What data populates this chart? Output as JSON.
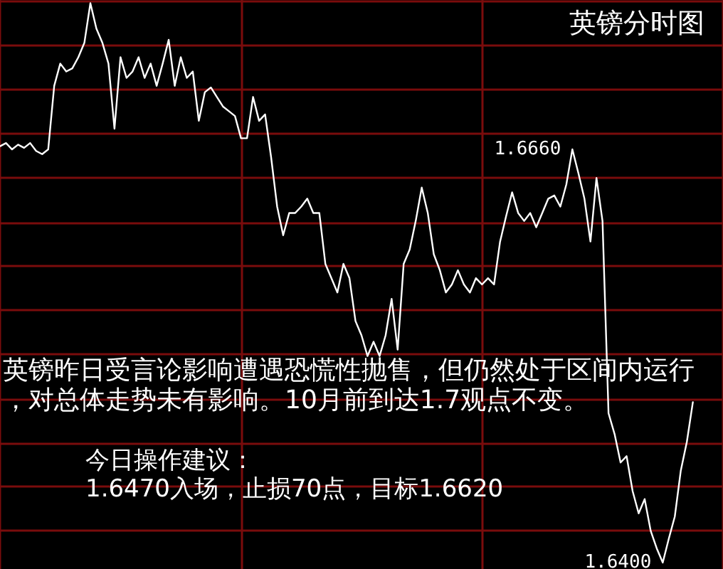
{
  "chart_data": {
    "type": "line",
    "title": "英镑分时图",
    "annotations": [
      "英镑昨日受言论影响遭遇恐慌性抛售，但仍然处于区间内运行，对总体走势未有影响。10月前到达1.7观点不变。",
      "今日操作建议：",
      "1.6470入场，止损70点，目标1.6620"
    ],
    "categories": [
      null,
      null,
      null,
      null,
      null,
      null,
      null,
      null,
      null,
      null,
      null,
      null,
      null,
      null,
      null,
      null,
      null,
      null,
      null,
      null,
      null,
      null,
      null,
      null,
      null,
      null,
      null,
      null,
      null,
      null,
      null,
      null,
      null,
      null,
      null,
      null,
      null,
      null,
      null,
      null,
      null,
      null,
      null,
      null,
      null,
      null,
      null,
      null,
      null,
      null,
      null,
      null,
      null,
      null,
      null,
      null,
      null,
      null,
      null,
      null,
      null,
      null,
      null,
      null,
      null,
      null,
      null,
      null,
      null,
      null,
      null,
      null,
      null,
      null,
      null,
      null,
      null,
      null,
      null,
      null,
      null,
      null,
      null,
      null,
      null,
      null,
      null,
      null,
      null,
      null,
      null,
      null,
      null,
      null,
      null,
      null,
      null,
      null,
      null,
      null,
      null,
      null,
      null,
      null,
      null,
      null,
      null,
      null,
      null,
      null,
      null,
      null,
      null,
      null,
      null,
      null,
      null,
      null,
      null,
      null,
      null
    ],
    "color": "#ffffff",
    "values": [
      1.6662,
      1.6664,
      1.666,
      1.6663,
      1.6661,
      1.6664,
      1.6659,
      1.6657,
      1.666,
      1.67,
      1.6714,
      1.6709,
      1.6711,
      1.6718,
      1.6727,
      1.6752,
      1.6736,
      1.6727,
      1.6714,
      1.6673,
      1.6718,
      1.6705,
      1.6709,
      1.6718,
      1.6705,
      1.6714,
      1.67,
      1.6714,
      1.6729,
      1.67,
      1.6718,
      1.6705,
      1.6709,
      1.6678,
      1.6696,
      1.6699,
      1.6693,
      1.6687,
      1.6684,
      1.6681,
      1.6667,
      1.6667,
      1.6693,
      1.6678,
      1.6682,
      1.6655,
      1.6624,
      1.6606,
      1.662,
      1.662,
      1.6624,
      1.6629,
      1.662,
      1.662,
      1.6588,
      1.6579,
      1.657,
      1.6588,
      1.6579,
      1.6552,
      1.6543,
      1.653,
      1.6539,
      1.653,
      1.6543,
      1.6566,
      1.6534,
      1.6588,
      1.6597,
      1.6615,
      1.6636,
      1.662,
      1.6594,
      1.6584,
      1.657,
      1.6575,
      1.6584,
      1.6575,
      1.657,
      1.6579,
      1.6575,
      1.6579,
      1.6575,
      1.6602,
      1.6618,
      1.6633,
      1.662,
      1.6615,
      1.662,
      1.6611,
      1.662,
      1.6629,
      1.6631,
      1.6624,
      1.6638,
      1.666,
      1.6645,
      1.6629,
      1.6602,
      1.6642,
      1.6615,
      1.6494,
      1.6481,
      1.6463,
      1.6467,
      1.6445,
      1.6431,
      1.644,
      1.642,
      1.6409,
      1.64,
      1.6415,
      1.6429,
      1.6458,
      1.6476,
      1.6501,
      null,
      null,
      null,
      null,
      null
    ],
    "value_labels": [
      null,
      null,
      null,
      null,
      null,
      null,
      null,
      null,
      null,
      null,
      null,
      null,
      null,
      null,
      null,
      null,
      null,
      null,
      null,
      null,
      null,
      null,
      null,
      null,
      null,
      null,
      null,
      null,
      null,
      null,
      null,
      null,
      null,
      null,
      null,
      null,
      null,
      null,
      null,
      null,
      null,
      null,
      null,
      null,
      null,
      null,
      null,
      null,
      null,
      null,
      null,
      null,
      null,
      null,
      null,
      null,
      null,
      null,
      null,
      null,
      null,
      null,
      null,
      null,
      null,
      null,
      null,
      null,
      null,
      null,
      null,
      null,
      null,
      null,
      null,
      null,
      null,
      null,
      null,
      null,
      null,
      null,
      null,
      null,
      null,
      null,
      null,
      null,
      null,
      null,
      null,
      null,
      null,
      null,
      null,
      "1.6660",
      null,
      null,
      null,
      null,
      null,
      null,
      null,
      null,
      null,
      null,
      null,
      null,
      null,
      null,
      "1.6400",
      null,
      null,
      null,
      null,
      null,
      null,
      null,
      null,
      null,
      null
    ],
    "ylim": [
      1.6396,
      1.6754
    ],
    "yticks": [
      {
        "value": 1.6753,
        "label": null
      },
      {
        "value": 1.6726,
        "label": null
      },
      {
        "value": 1.6698,
        "label": null
      },
      {
        "value": 1.667,
        "label": null
      },
      {
        "value": 1.6642,
        "label": null
      },
      {
        "value": 1.6614,
        "label": null
      },
      {
        "value": 1.6587,
        "label": null
      },
      {
        "value": 1.6559,
        "label": null
      },
      {
        "value": 1.6531,
        "label": null
      },
      {
        "value": 1.6503,
        "label": null
      },
      {
        "value": 1.6475,
        "label": null
      },
      {
        "value": 1.6448,
        "label": null
      },
      {
        "value": 1.642,
        "label": null
      }
    ],
    "grid": true,
    "tick_labels": false,
    "marker": "none"
  }
}
